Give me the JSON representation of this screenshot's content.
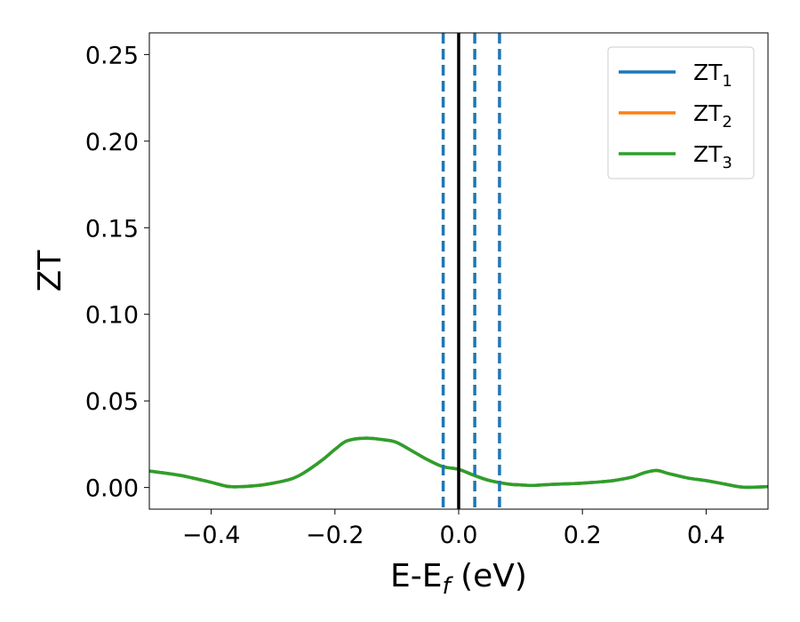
{
  "chart_data": {
    "type": "line",
    "xlabel": {
      "main": "E-E",
      "sub": "f",
      "unit": " (eV)"
    },
    "ylabel": "ZT",
    "xlim": [
      -0.5,
      0.5
    ],
    "ylim": [
      -0.0125,
      0.2625
    ],
    "xticks": [
      -0.4,
      -0.2,
      0.0,
      0.2,
      0.4
    ],
    "xtick_labels": [
      "−0.4",
      "−0.2",
      "0.0",
      "0.2",
      "0.4"
    ],
    "yticks": [
      0.0,
      0.05,
      0.1,
      0.15,
      0.2,
      0.25
    ],
    "ytick_labels": [
      "0.00",
      "0.05",
      "0.10",
      "0.15",
      "0.20",
      "0.25"
    ],
    "grid": false,
    "legend_position": "top-right",
    "series": [
      {
        "name": {
          "main": "ZT",
          "sub": "1"
        },
        "color": "#1f77b4",
        "x": [
          -0.5,
          -0.45,
          -0.4,
          -0.37,
          -0.33,
          -0.3,
          -0.27,
          -0.25,
          -0.22,
          -0.2,
          -0.18,
          -0.15,
          -0.12,
          -0.1,
          -0.07,
          -0.05,
          -0.025,
          0.0,
          0.025,
          0.05,
          0.08,
          0.1,
          0.12,
          0.15,
          0.18,
          0.2,
          0.22,
          0.25,
          0.28,
          0.3,
          0.32,
          0.34,
          0.37,
          0.4,
          0.43,
          0.46,
          0.5
        ],
        "y": [
          0.0095,
          0.007,
          0.003,
          0.0005,
          0.001,
          0.0025,
          0.005,
          0.0085,
          0.016,
          0.022,
          0.027,
          0.0285,
          0.0275,
          0.026,
          0.02,
          0.016,
          0.012,
          0.0105,
          0.007,
          0.004,
          0.002,
          0.0015,
          0.0012,
          0.0018,
          0.0022,
          0.0025,
          0.003,
          0.004,
          0.006,
          0.0085,
          0.0098,
          0.008,
          0.0055,
          0.004,
          0.002,
          0.0002,
          0.0005
        ]
      },
      {
        "name": {
          "main": "ZT",
          "sub": "2"
        },
        "color": "#ff7f0e",
        "x": [
          -0.5,
          -0.45,
          -0.4,
          -0.37,
          -0.33,
          -0.3,
          -0.27,
          -0.25,
          -0.22,
          -0.2,
          -0.18,
          -0.15,
          -0.12,
          -0.1,
          -0.07,
          -0.05,
          -0.025,
          0.0,
          0.025,
          0.05,
          0.08,
          0.1,
          0.12,
          0.15,
          0.18,
          0.2,
          0.22,
          0.25,
          0.28,
          0.3,
          0.32,
          0.34,
          0.37,
          0.4,
          0.43,
          0.46,
          0.5
        ],
        "y": [
          0.0095,
          0.007,
          0.003,
          0.0005,
          0.001,
          0.0025,
          0.005,
          0.0085,
          0.016,
          0.022,
          0.027,
          0.0285,
          0.0275,
          0.026,
          0.02,
          0.016,
          0.012,
          0.0105,
          0.007,
          0.004,
          0.002,
          0.0015,
          0.0012,
          0.0018,
          0.0022,
          0.0025,
          0.003,
          0.004,
          0.006,
          0.0085,
          0.0098,
          0.008,
          0.0055,
          0.004,
          0.002,
          0.0002,
          0.0005
        ]
      },
      {
        "name": {
          "main": "ZT",
          "sub": "3"
        },
        "color": "#2ca02c",
        "x": [
          -0.5,
          -0.45,
          -0.4,
          -0.37,
          -0.33,
          -0.3,
          -0.27,
          -0.25,
          -0.22,
          -0.2,
          -0.18,
          -0.15,
          -0.12,
          -0.1,
          -0.07,
          -0.05,
          -0.025,
          0.0,
          0.025,
          0.05,
          0.08,
          0.1,
          0.12,
          0.15,
          0.18,
          0.2,
          0.22,
          0.25,
          0.28,
          0.3,
          0.32,
          0.34,
          0.37,
          0.4,
          0.43,
          0.46,
          0.5
        ],
        "y": [
          0.0095,
          0.007,
          0.003,
          0.0005,
          0.001,
          0.0025,
          0.005,
          0.0085,
          0.016,
          0.022,
          0.027,
          0.0285,
          0.0275,
          0.026,
          0.02,
          0.016,
          0.012,
          0.0105,
          0.007,
          0.004,
          0.002,
          0.0015,
          0.0012,
          0.0018,
          0.0022,
          0.0025,
          0.003,
          0.004,
          0.006,
          0.0085,
          0.0098,
          0.008,
          0.0055,
          0.004,
          0.002,
          0.0002,
          0.0005
        ]
      }
    ],
    "vlines": [
      {
        "x": 0.0,
        "style": "solid",
        "color": "#000000"
      },
      {
        "x": -0.025,
        "style": "dashed",
        "color": "#1f77b4"
      },
      {
        "x": 0.026,
        "style": "dashed",
        "color": "#1f77b4"
      },
      {
        "x": 0.066,
        "style": "dashed",
        "color": "#1f77b4"
      }
    ]
  }
}
